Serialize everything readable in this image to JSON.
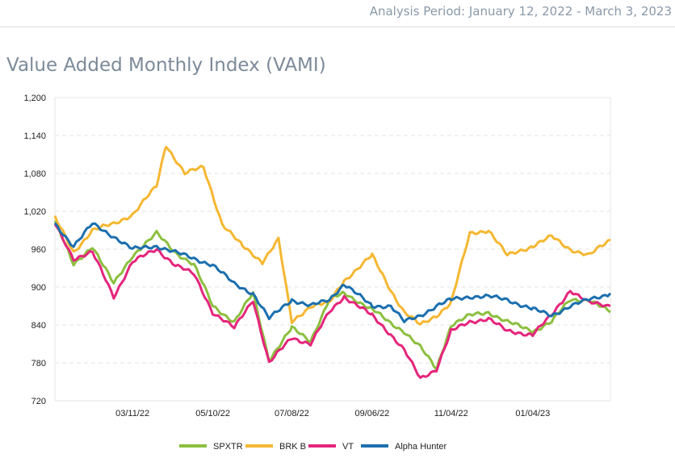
{
  "header": {
    "period": "Analysis Period: January 12, 2022 - March 3, 2023"
  },
  "page_title": "Value Added Monthly Index (VAMI)",
  "chart_data": {
    "type": "line",
    "title": "Value Added Monthly Index (VAMI)",
    "xlabel": "",
    "ylabel": "",
    "ylim": [
      720,
      1200
    ],
    "yticks": [
      720,
      780,
      840,
      900,
      960,
      1020,
      1080,
      1140,
      1200
    ],
    "ytick_labels": [
      "720",
      "780",
      "840",
      "900",
      "960",
      "1,020",
      "1,080",
      "1,140",
      "1,200"
    ],
    "xlim": [
      "2022-01-12",
      "2023-03-03"
    ],
    "xticks": [
      "2022-03-11",
      "2022-05-10",
      "2022-07-08",
      "2022-09-06",
      "2022-11-04",
      "2023-01-04"
    ],
    "xtick_labels": [
      "03/11/22",
      "05/10/22",
      "07/08/22",
      "09/06/22",
      "11/04/22",
      "01/04/23"
    ],
    "grid": "horizontal dashed",
    "legend": "bottom-center",
    "series": [
      {
        "name": "SPXTR",
        "color": "#8cbf3f",
        "x": [
          "2022-01-12",
          "2022-01-26",
          "2022-02-09",
          "2022-02-25",
          "2022-03-11",
          "2022-03-29",
          "2022-04-12",
          "2022-04-26",
          "2022-05-10",
          "2022-05-26",
          "2022-06-09",
          "2022-06-21",
          "2022-07-08",
          "2022-07-22",
          "2022-08-05",
          "2022-08-16",
          "2022-09-06",
          "2022-09-20",
          "2022-09-30",
          "2022-10-12",
          "2022-10-24",
          "2022-11-04",
          "2022-11-18",
          "2022-12-02",
          "2022-12-16",
          "2023-01-04",
          "2023-01-18",
          "2023-02-01",
          "2023-02-15",
          "2023-03-03"
        ],
        "values": [
          1005,
          935,
          965,
          905,
          950,
          985,
          955,
          935,
          870,
          845,
          890,
          785,
          835,
          815,
          880,
          890,
          865,
          842,
          830,
          805,
          770,
          840,
          855,
          860,
          845,
          830,
          845,
          880,
          880,
          860
        ]
      },
      {
        "name": "BRK B",
        "color": "#f5b731",
        "x": [
          "2022-01-12",
          "2022-01-26",
          "2022-02-09",
          "2022-02-25",
          "2022-03-11",
          "2022-03-29",
          "2022-04-05",
          "2022-04-19",
          "2022-05-03",
          "2022-05-17",
          "2022-06-01",
          "2022-06-16",
          "2022-06-28",
          "2022-07-08",
          "2022-07-22",
          "2022-08-05",
          "2022-08-16",
          "2022-09-06",
          "2022-09-20",
          "2022-09-30",
          "2022-10-12",
          "2022-10-24",
          "2022-11-04",
          "2022-11-18",
          "2022-12-02",
          "2022-12-16",
          "2023-01-04",
          "2023-01-18",
          "2023-02-01",
          "2023-02-15",
          "2023-03-03"
        ],
        "values": [
          1010,
          955,
          990,
          1000,
          1015,
          1060,
          1125,
          1080,
          1090,
          1000,
          965,
          940,
          975,
          845,
          870,
          875,
          910,
          950,
          895,
          860,
          840,
          855,
          875,
          985,
          990,
          950,
          965,
          980,
          960,
          950,
          975
        ]
      },
      {
        "name": "VT",
        "color": "#e5257c",
        "x": [
          "2022-01-12",
          "2022-01-26",
          "2022-02-09",
          "2022-02-25",
          "2022-03-11",
          "2022-03-29",
          "2022-04-12",
          "2022-04-26",
          "2022-05-10",
          "2022-05-26",
          "2022-06-09",
          "2022-06-21",
          "2022-07-08",
          "2022-07-22",
          "2022-08-05",
          "2022-08-16",
          "2022-09-06",
          "2022-09-20",
          "2022-09-30",
          "2022-10-12",
          "2022-10-24",
          "2022-11-04",
          "2022-11-18",
          "2022-12-02",
          "2022-12-16",
          "2023-01-04",
          "2023-01-18",
          "2023-02-01",
          "2023-02-15",
          "2023-03-03"
        ],
        "values": [
          1000,
          945,
          955,
          885,
          940,
          960,
          935,
          920,
          860,
          835,
          880,
          780,
          820,
          810,
          860,
          885,
          855,
          825,
          800,
          755,
          770,
          830,
          845,
          850,
          830,
          825,
          855,
          895,
          875,
          870
        ]
      },
      {
        "name": "Alpha Hunter",
        "color": "#1c6fae",
        "x": [
          "2022-01-12",
          "2022-01-26",
          "2022-02-09",
          "2022-02-25",
          "2022-03-11",
          "2022-03-29",
          "2022-04-12",
          "2022-04-26",
          "2022-05-10",
          "2022-05-26",
          "2022-06-09",
          "2022-06-21",
          "2022-07-08",
          "2022-07-22",
          "2022-08-05",
          "2022-08-16",
          "2022-09-06",
          "2022-09-20",
          "2022-09-30",
          "2022-10-12",
          "2022-10-24",
          "2022-11-04",
          "2022-11-18",
          "2022-12-02",
          "2022-12-16",
          "2023-01-04",
          "2023-01-18",
          "2023-02-01",
          "2023-02-15",
          "2023-03-03"
        ],
        "values": [
          1000,
          965,
          1000,
          980,
          960,
          965,
          955,
          945,
          935,
          905,
          890,
          850,
          880,
          870,
          880,
          905,
          870,
          870,
          845,
          855,
          870,
          880,
          885,
          885,
          880,
          865,
          855,
          870,
          880,
          890
        ]
      }
    ]
  }
}
